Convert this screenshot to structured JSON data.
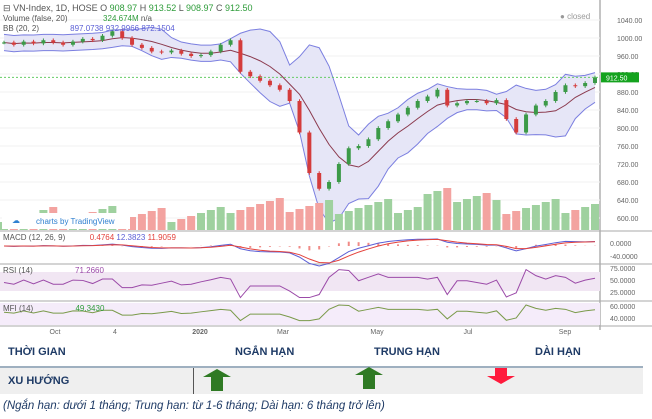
{
  "header": {
    "symbol": "VN-Index, 1D, HOSE",
    "o_label": "O",
    "open": "908.97",
    "h_label": "H",
    "high": "913.52",
    "l_label": "L",
    "low": "908.97",
    "c_label": "C",
    "close": "912.50",
    "status": "closed"
  },
  "volume": {
    "label": "Volume (false, 20)",
    "value": "324.674M",
    "extra": "n/a"
  },
  "bb": {
    "label": "BB (20, 2)",
    "values": "897.0738  932.9966  872.1504"
  },
  "macd": {
    "label": "MACD (12, 26, 9)",
    "v1": "0.4764",
    "v2": "12.3823",
    "v3": "11.9059"
  },
  "rsi": {
    "label": "RSI (14)",
    "value": "71.2660"
  },
  "mfi": {
    "label": "MFI (14)",
    "value": "49.3430"
  },
  "branding": "charts by TradingView",
  "colors": {
    "up": "#3c9a48",
    "down": "#d43c3c",
    "band": "#7b7fe0",
    "basis": "#8b3a4e",
    "last": "#14a31e",
    "arrow_up": "#2f7a24",
    "arrow_down": "#ff1a3c"
  },
  "chart_data": {
    "type": "candlestick",
    "title": "VN-Index, 1D, HOSE",
    "last_price": 912.5,
    "price_ticks": [
      1040,
      1000,
      960,
      920,
      880,
      840,
      800,
      760,
      720,
      680,
      640,
      600
    ],
    "price_tick_labels": [
      "1040.00",
      "1000.00",
      "960.00",
      "920.00",
      "880.00",
      "840.00",
      "800.00",
      "760.00",
      "720.00",
      "680.00",
      "640.00",
      "600.00"
    ],
    "last_price_label": "912.50",
    "macd_ticks": [
      "0.0000",
      "-40.0000"
    ],
    "rsi_ticks": [
      "75.0000",
      "50.0000",
      "25.0000"
    ],
    "mfi_ticks": [
      "60.0000",
      "40.0000"
    ],
    "x_ticks": [
      "Oct",
      "4",
      "2020",
      "Mar",
      "May",
      "Jul",
      "Sep"
    ],
    "closes": [
      990,
      985,
      992,
      988,
      995,
      990,
      985,
      992,
      998,
      995,
      1005,
      1015,
      1000,
      985,
      978,
      970,
      968,
      972,
      965,
      960,
      962,
      970,
      985,
      995,
      925,
      915,
      905,
      895,
      885,
      860,
      790,
      700,
      665,
      680,
      720,
      755,
      760,
      775,
      800,
      815,
      830,
      845,
      860,
      870,
      885,
      850,
      855,
      860,
      860,
      855,
      862,
      820,
      790,
      830,
      850,
      860,
      880,
      895,
      893,
      900,
      912.5
    ]
  },
  "table": {
    "col0": "THỜI GIAN",
    "col1": "NGẮN HẠN",
    "col2": "TRUNG HẠN",
    "col3": "DÀI HẠN",
    "row_label": "XU HƯỚNG",
    "trends": [
      "up",
      "up",
      "down"
    ]
  },
  "footnote": "(Ngắn hạn: dưới 1 tháng; Trung hạn: từ 1-6 tháng; Dài hạn: 6 tháng trở lên)"
}
